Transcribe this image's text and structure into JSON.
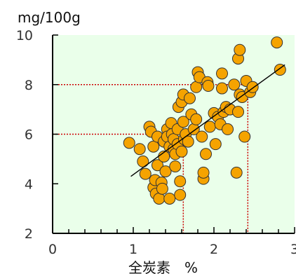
{
  "chart_data": {
    "type": "scatter",
    "title": "",
    "ylabel": "mg/100g",
    "xlabel": "全炭素　%",
    "xlim": [
      0,
      3
    ],
    "ylim": [
      2,
      10
    ],
    "xticks": [
      "0",
      "1",
      "2",
      "3"
    ],
    "yticks": [
      "2",
      "4",
      "6",
      "8",
      "10"
    ],
    "grid": false,
    "background_color": "#eaffea",
    "marker_color": "#f5a300",
    "marker_edge_color": "#333333",
    "trendline": {
      "x": [
        0.97,
        2.88
      ],
      "y": [
        4.3,
        8.8
      ],
      "color": "#000000"
    },
    "reference_lines": [
      {
        "x": 1.62,
        "y": 6.0,
        "color": "#cc0000"
      },
      {
        "x": 2.42,
        "y": 8.0,
        "color": "#cc0000"
      }
    ],
    "points": [
      [
        0.95,
        5.65
      ],
      [
        1.08,
        5.4
      ],
      [
        1.12,
        4.9
      ],
      [
        1.15,
        4.4
      ],
      [
        1.2,
        6.3
      ],
      [
        1.22,
        6.1
      ],
      [
        1.25,
        5.5
      ],
      [
        1.25,
        3.85
      ],
      [
        1.27,
        4.15
      ],
      [
        1.28,
        3.6
      ],
      [
        1.3,
        5.9
      ],
      [
        1.3,
        4.75
      ],
      [
        1.32,
        3.4
      ],
      [
        1.35,
        4.05
      ],
      [
        1.36,
        3.8
      ],
      [
        1.38,
        5.1
      ],
      [
        1.38,
        5.7
      ],
      [
        1.4,
        4.5
      ],
      [
        1.42,
        6.2
      ],
      [
        1.42,
        5.9
      ],
      [
        1.45,
        3.4
      ],
      [
        1.45,
        5.5
      ],
      [
        1.47,
        6.45
      ],
      [
        1.48,
        6.0
      ],
      [
        1.5,
        5.4
      ],
      [
        1.5,
        5.8
      ],
      [
        1.52,
        4.7
      ],
      [
        1.52,
        5.2
      ],
      [
        1.55,
        5.6
      ],
      [
        1.55,
        6.2
      ],
      [
        1.56,
        7.1
      ],
      [
        1.58,
        4.1
      ],
      [
        1.58,
        3.55
      ],
      [
        1.6,
        5.3
      ],
      [
        1.6,
        7.3
      ],
      [
        1.62,
        6.5
      ],
      [
        1.62,
        7.6
      ],
      [
        1.63,
        5.8
      ],
      [
        1.65,
        6.0
      ],
      [
        1.68,
        5.7
      ],
      [
        1.7,
        7.45
      ],
      [
        1.72,
        6.8
      ],
      [
        1.75,
        6.2
      ],
      [
        1.78,
        6.6
      ],
      [
        1.78,
        7.9
      ],
      [
        1.8,
        8.5
      ],
      [
        1.82,
        8.3
      ],
      [
        1.85,
        5.9
      ],
      [
        1.87,
        4.2
      ],
      [
        1.87,
        4.45
      ],
      [
        1.9,
        5.2
      ],
      [
        1.92,
        8.1
      ],
      [
        1.93,
        7.95
      ],
      [
        1.95,
        6.3
      ],
      [
        2.0,
        6.85
      ],
      [
        2.02,
        5.6
      ],
      [
        2.05,
        6.7
      ],
      [
        2.08,
        6.4
      ],
      [
        2.1,
        8.45
      ],
      [
        2.1,
        7.85
      ],
      [
        2.12,
        6.9
      ],
      [
        2.15,
        7.1
      ],
      [
        2.17,
        6.2
      ],
      [
        2.2,
        7.0
      ],
      [
        2.25,
        8.0
      ],
      [
        2.28,
        4.45
      ],
      [
        2.3,
        6.9
      ],
      [
        2.32,
        7.6
      ],
      [
        2.35,
        7.5
      ],
      [
        2.38,
        5.9
      ],
      [
        2.4,
        8.15
      ],
      [
        2.45,
        7.7
      ],
      [
        2.48,
        7.9
      ],
      [
        2.3,
        9.05
      ],
      [
        2.32,
        9.4
      ],
      [
        2.78,
        9.7
      ],
      [
        2.82,
        8.6
      ]
    ]
  }
}
